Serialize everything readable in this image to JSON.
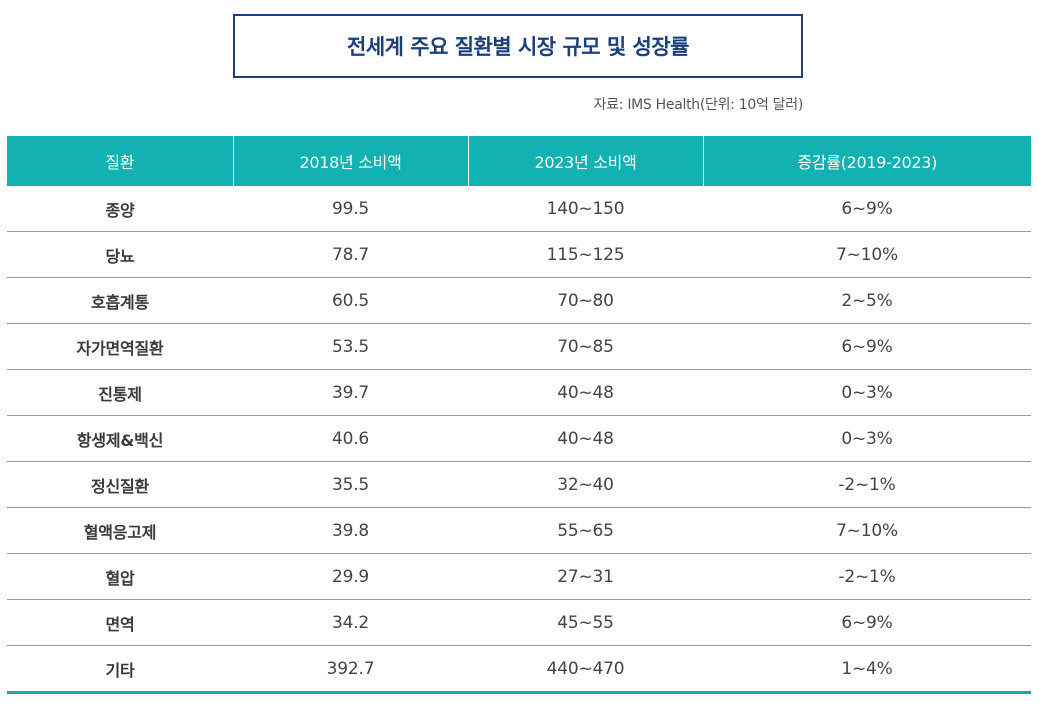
{
  "title": "전세계 주요 질환별 시장 규모 및 성장률",
  "source": "자료: IMS Health(단위: 10억 달러)",
  "table": {
    "headers": [
      "질환",
      "2018년 소비액",
      "2023년 소비액",
      "증감률(2019-2023)"
    ],
    "rows": [
      [
        "종양",
        "99.5",
        "140~150",
        "6~9%"
      ],
      [
        "당뇨",
        "78.7",
        "115~125",
        "7~10%"
      ],
      [
        "호흡계통",
        "60.5",
        "70~80",
        "2~5%"
      ],
      [
        "자가면역질환",
        "53.5",
        "70~85",
        "6~9%"
      ],
      [
        "진통제",
        "39.7",
        "40~48",
        "0~3%"
      ],
      [
        "항생제&백신",
        "40.6",
        "40~48",
        "0~3%"
      ],
      [
        "정신질환",
        "35.5",
        "32~40",
        "-2~1%"
      ],
      [
        "혈액응고제",
        "39.8",
        "55~65",
        "7~10%"
      ],
      [
        "혈압",
        "29.9",
        "27~31",
        "-2~1%"
      ],
      [
        "면역",
        "34.2",
        "45~55",
        "6~9%"
      ],
      [
        "기타",
        "392.7",
        "440~470",
        "1~4%"
      ]
    ]
  },
  "colors": {
    "header_bg": "#13b1b1",
    "title": "#1b3f7a",
    "row_divider": "#4bb8c4"
  }
}
